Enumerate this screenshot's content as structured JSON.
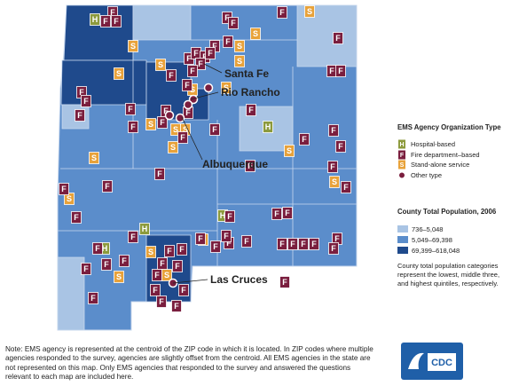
{
  "map": {
    "cities": [
      "Santa Fe",
      "Rio Rancho",
      "Albuquerque",
      "Las Cruces"
    ]
  },
  "legend": {
    "agency_title": "EMS Agency Organization Type",
    "agency_types": [
      {
        "symbol": "H",
        "label": "Hospital-based"
      },
      {
        "symbol": "F",
        "label": "Fire department–based"
      },
      {
        "symbol": "S",
        "label": "Stand-alone service"
      },
      {
        "label": "Other type"
      }
    ],
    "population_title": "County Total Population, 2006",
    "population_classes": [
      "736–5,048",
      "5,049–69,398",
      "69,399–618,048"
    ],
    "population_note": "County total population categories represent the lowest, middle three, and highest quintiles, respectively."
  },
  "note": "Note: EMS agency is represented at the centroid of the ZIP code in which it is located. In ZIP codes where multiple agencies responded to the survey, agencies are slightly offset from the centroid. All EMS agencies in the state are not represented on this map. Only EMS agencies that responded to the survey and answered the questions relevant to each map are included here.",
  "logo": "CDC"
}
